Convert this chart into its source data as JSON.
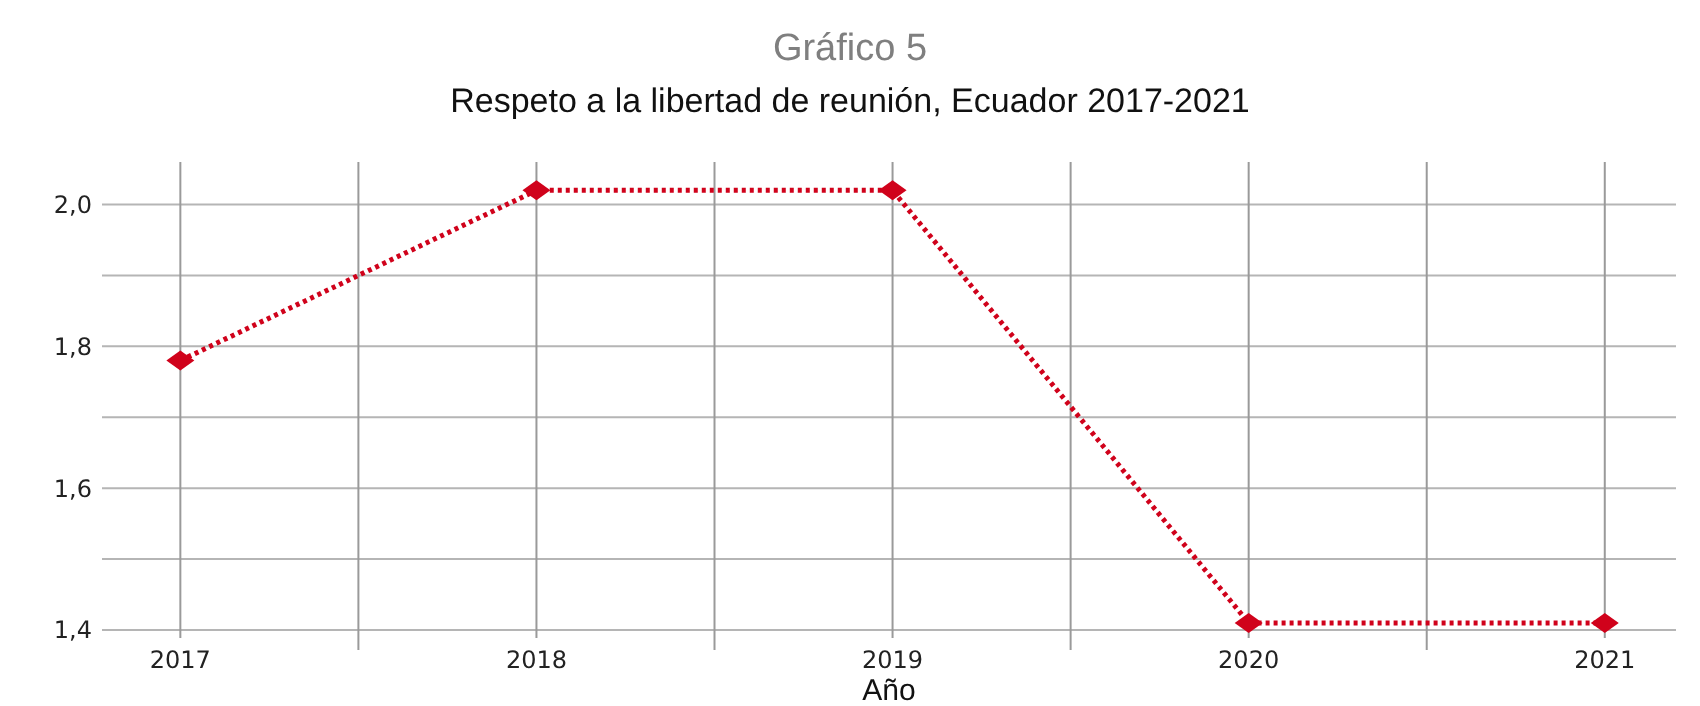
{
  "chart_data": {
    "type": "line",
    "title": "Gráfico 5",
    "subtitle": "Respeto a la libertad de reunión, Ecuador 2017-2021",
    "xlabel": "Año",
    "x": [
      2017,
      2018,
      2019,
      2020,
      2021
    ],
    "series": [
      {
        "color": "#d0021b",
        "values": [
          1.78,
          2.02,
          2.02,
          1.41,
          1.41
        ]
      }
    ],
    "xlim": [
      2016.78,
      2021.2
    ],
    "xticks": [
      2017,
      {
        "value": 2017.5,
        "label": null
      },
      2018,
      {
        "value": 2018.5,
        "label": null
      },
      2019,
      {
        "value": 2019.5,
        "label": null
      },
      2020,
      {
        "value": 2020.5,
        "label": null
      },
      2021
    ],
    "ylim": [
      1.4,
      2.06
    ],
    "yticks": [
      {
        "value": 1.4,
        "label": "1,4"
      },
      {
        "value": 1.5,
        "label": null
      },
      {
        "value": 1.6,
        "label": "1,6"
      },
      {
        "value": 1.7,
        "label": null
      },
      {
        "value": 1.8,
        "label": "1,8"
      },
      {
        "value": 1.9,
        "label": null
      },
      {
        "value": 2.0,
        "label": "2,0"
      }
    ],
    "grid": true,
    "marker": "diamond",
    "line_style": "dotted"
  }
}
